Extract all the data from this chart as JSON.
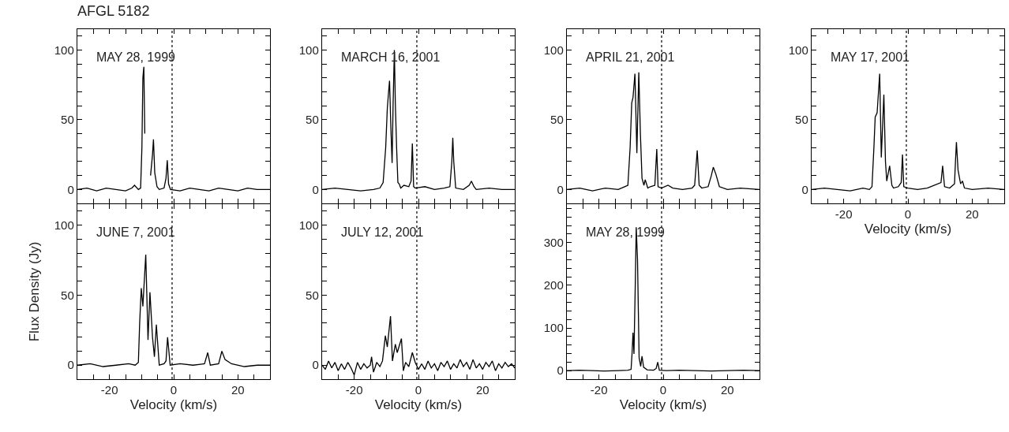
{
  "chart_data": [
    {
      "type": "line",
      "title": "AFGL 5182",
      "annotations": [
        "MAY 28, 1999"
      ],
      "tick_labels": "y",
      "xlim": [
        -30,
        30
      ],
      "ylim": [
        -10,
        115
      ],
      "xticks": [
        {
          "value": -30,
          "label": null
        },
        {
          "value": -25,
          "label": null
        },
        {
          "value": -20,
          "label": null
        },
        {
          "value": -15,
          "label": null
        },
        {
          "value": -10,
          "label": null
        },
        {
          "value": -5,
          "label": null
        },
        {
          "value": 0,
          "label": null
        },
        {
          "value": 5,
          "label": null
        },
        {
          "value": 10,
          "label": null
        },
        {
          "value": 15,
          "label": null
        },
        {
          "value": 20,
          "label": null
        },
        {
          "value": 25,
          "label": null
        },
        {
          "value": 30,
          "label": null
        }
      ],
      "yticks": [
        0,
        {
          "value": 10,
          "label": null
        },
        {
          "value": 20,
          "label": null
        },
        {
          "value": 30,
          "label": null
        },
        {
          "value": 40,
          "label": null
        },
        50,
        {
          "value": 60,
          "label": null
        },
        {
          "value": 70,
          "label": null
        },
        {
          "value": 80,
          "label": null
        },
        {
          "value": 90,
          "label": null
        },
        100,
        {
          "value": 110,
          "label": null
        }
      ],
      "ref_lines": [
        {
          "axis": "x",
          "value": -0.5,
          "line_style": "dotted"
        }
      ],
      "series": [
        {
          "color": "#000000",
          "x": [
            -30,
            -27,
            -24,
            -21,
            -18,
            -15,
            -13,
            -12.2,
            -11,
            -10.3,
            -9.9,
            -9.6,
            -9.3,
            -9.0,
            -8.7,
            -7.7,
            -7.2,
            -6.6,
            -6.3,
            -5.9,
            -5.2,
            -4.5,
            -3.0,
            -2.4,
            -2.0,
            -1.6,
            -1,
            2,
            5,
            8,
            11,
            14,
            17,
            20,
            23,
            26,
            30
          ],
          "values": [
            0,
            1,
            -1,
            1,
            0,
            -1,
            1,
            3,
            0,
            1,
            30,
            80,
            88,
            40,
            null,
            null,
            10,
            25,
            36,
            12,
            2,
            0,
            1,
            8,
            21,
            4,
            0,
            -1,
            1,
            0,
            -1,
            1,
            0,
            -1,
            1,
            0,
            0
          ]
        }
      ]
    },
    {
      "type": "line",
      "annotations": [
        "MARCH 16, 2001"
      ],
      "tick_labels": "y",
      "xlim": [
        -30,
        30
      ],
      "ylim": [
        -10,
        115
      ],
      "xticks": [
        {
          "value": -30,
          "label": null
        },
        {
          "value": -25,
          "label": null
        },
        {
          "value": -20,
          "label": null
        },
        {
          "value": -15,
          "label": null
        },
        {
          "value": -10,
          "label": null
        },
        {
          "value": -5,
          "label": null
        },
        {
          "value": 0,
          "label": null
        },
        {
          "value": 5,
          "label": null
        },
        {
          "value": 10,
          "label": null
        },
        {
          "value": 15,
          "label": null
        },
        {
          "value": 20,
          "label": null
        },
        {
          "value": 25,
          "label": null
        },
        {
          "value": 30,
          "label": null
        }
      ],
      "yticks": [
        0,
        {
          "value": 10,
          "label": null
        },
        {
          "value": 20,
          "label": null
        },
        {
          "value": 30,
          "label": null
        },
        {
          "value": 40,
          "label": null
        },
        50,
        {
          "value": 60,
          "label": null
        },
        {
          "value": 70,
          "label": null
        },
        {
          "value": 80,
          "label": null
        },
        {
          "value": 90,
          "label": null
        },
        100,
        {
          "value": 110,
          "label": null
        }
      ],
      "ref_lines": [
        {
          "axis": "x",
          "value": -0.5,
          "line_style": "dotted"
        }
      ],
      "series": [
        {
          "color": "#000000",
          "x": [
            -30,
            -26,
            -22,
            -18,
            -14,
            -12,
            -11,
            -10.2,
            -9.7,
            -9.3,
            -9.0,
            -8.6,
            -8.2,
            -7.9,
            -7.5,
            -7.2,
            -6.8,
            -6.4,
            -6.0,
            -5.5,
            -4.5,
            -3,
            -2.3,
            -1.9,
            -1.5,
            -1,
            2,
            5,
            8,
            9.8,
            10.4,
            10.7,
            11.0,
            11.6,
            14,
            15.8,
            16.5,
            17.3,
            18,
            22,
            26,
            30
          ],
          "values": [
            0,
            1,
            0,
            -1,
            0,
            1,
            5,
            30,
            58,
            70,
            78,
            45,
            19,
            60,
            100,
            62,
            30,
            5,
            4,
            1,
            3,
            2,
            6,
            33,
            2,
            1,
            2,
            0,
            1,
            2,
            20,
            37,
            20,
            1,
            0,
            3,
            6,
            2,
            0,
            1,
            0,
            0
          ]
        }
      ]
    },
    {
      "type": "line",
      "annotations": [
        "APRIL 21, 2001"
      ],
      "tick_labels": "y",
      "xlim": [
        -30,
        30
      ],
      "ylim": [
        -10,
        115
      ],
      "xticks": [
        {
          "value": -30,
          "label": null
        },
        {
          "value": -25,
          "label": null
        },
        {
          "value": -20,
          "label": null
        },
        {
          "value": -15,
          "label": null
        },
        {
          "value": -10,
          "label": null
        },
        {
          "value": -5,
          "label": null
        },
        {
          "value": 0,
          "label": null
        },
        {
          "value": 5,
          "label": null
        },
        {
          "value": 10,
          "label": null
        },
        {
          "value": 15,
          "label": null
        },
        {
          "value": 20,
          "label": null
        },
        {
          "value": 25,
          "label": null
        },
        {
          "value": 30,
          "label": null
        }
      ],
      "yticks": [
        0,
        {
          "value": 10,
          "label": null
        },
        {
          "value": 20,
          "label": null
        },
        {
          "value": 30,
          "label": null
        },
        {
          "value": 40,
          "label": null
        },
        50,
        {
          "value": 60,
          "label": null
        },
        {
          "value": 70,
          "label": null
        },
        {
          "value": 80,
          "label": null
        },
        {
          "value": 90,
          "label": null
        },
        100,
        {
          "value": 110,
          "label": null
        }
      ],
      "ref_lines": [
        {
          "axis": "x",
          "value": -0.5,
          "line_style": "dotted"
        }
      ],
      "series": [
        {
          "color": "#000000",
          "x": [
            -30,
            -26,
            -22,
            -18,
            -14,
            -12,
            -11,
            -10.3,
            -9.8,
            -9.4,
            -8.8,
            -8.2,
            -7.6,
            -7.1,
            -6.6,
            -6.0,
            -5.6,
            -4.8,
            -4,
            -2.6,
            -2.0,
            -1.6,
            -0.5,
            1.5,
            3,
            6,
            9,
            9.8,
            10.6,
            11.2,
            12,
            14,
            15,
            15.6,
            16.4,
            17.5,
            20,
            24,
            30
          ],
          "values": [
            0,
            1,
            -1,
            1,
            0,
            2,
            3,
            30,
            62,
            66,
            83,
            26,
            84,
            40,
            8,
            3,
            7,
            1,
            2,
            3,
            29,
            2,
            1,
            3,
            1,
            0,
            1,
            3,
            28,
            3,
            1,
            2,
            10,
            16,
            11,
            2,
            0,
            1,
            0
          ]
        }
      ]
    },
    {
      "type": "line",
      "annotations": [
        "MAY 17, 2001"
      ],
      "xlabel": "Velocity (km/s)",
      "xlim": [
        -30,
        30
      ],
      "ylim": [
        -10,
        115
      ],
      "xticks": [
        {
          "value": -30,
          "label": null
        },
        {
          "value": -25,
          "label": null
        },
        -20,
        {
          "value": -15,
          "label": null
        },
        {
          "value": -10,
          "label": null
        },
        {
          "value": -5,
          "label": null
        },
        0,
        {
          "value": 5,
          "label": null
        },
        {
          "value": 10,
          "label": null
        },
        {
          "value": 15,
          "label": null
        },
        20,
        {
          "value": 25,
          "label": null
        },
        {
          "value": 30,
          "label": null
        }
      ],
      "yticks": [
        0,
        {
          "value": 10,
          "label": null
        },
        {
          "value": 20,
          "label": null
        },
        {
          "value": 30,
          "label": null
        },
        {
          "value": 40,
          "label": null
        },
        50,
        {
          "value": 60,
          "label": null
        },
        {
          "value": 70,
          "label": null
        },
        {
          "value": 80,
          "label": null
        },
        {
          "value": 90,
          "label": null
        },
        100,
        {
          "value": 110,
          "label": null
        }
      ],
      "ref_lines": [
        {
          "axis": "x",
          "value": -0.5,
          "line_style": "dotted"
        }
      ],
      "series": [
        {
          "color": "#000000",
          "x": [
            -30,
            -26,
            -22,
            -18,
            -14,
            -12,
            -11.2,
            -10.6,
            -10.2,
            -9.6,
            -8.8,
            -8.3,
            -7.5,
            -7.0,
            -6.6,
            -5.7,
            -5.0,
            -4.5,
            -3,
            -2.1,
            -1.7,
            -1.3,
            0,
            3,
            6,
            10.3,
            10.8,
            11.4,
            13,
            14.5,
            14.8,
            15.1,
            15.6,
            16.4,
            17.0,
            17.6,
            20,
            25,
            30
          ],
          "values": [
            0,
            1,
            0,
            -1,
            1,
            0,
            2,
            30,
            52,
            55,
            83,
            23,
            68,
            20,
            6,
            17,
            3,
            1,
            2,
            5,
            25,
            2,
            1,
            0,
            1,
            5,
            17,
            2,
            1,
            4,
            20,
            34,
            14,
            4,
            6,
            1,
            0,
            1,
            0
          ]
        }
      ]
    },
    {
      "type": "line",
      "annotations": [
        "JUNE 7, 2001"
      ],
      "xlabel": "Velocity (km/s)",
      "ylabel": "Flux Density (Jy)",
      "xlim": [
        -30,
        30
      ],
      "ylim": [
        -10,
        115
      ],
      "xticks": [
        {
          "value": -30,
          "label": null
        },
        {
          "value": -25,
          "label": null
        },
        -20,
        {
          "value": -15,
          "label": null
        },
        {
          "value": -10,
          "label": null
        },
        {
          "value": -5,
          "label": null
        },
        0,
        {
          "value": 5,
          "label": null
        },
        {
          "value": 10,
          "label": null
        },
        {
          "value": 15,
          "label": null
        },
        20,
        {
          "value": 25,
          "label": null
        },
        {
          "value": 30,
          "label": null
        }
      ],
      "yticks": [
        0,
        {
          "value": 10,
          "label": null
        },
        {
          "value": 20,
          "label": null
        },
        {
          "value": 30,
          "label": null
        },
        {
          "value": 40,
          "label": null
        },
        50,
        {
          "value": 60,
          "label": null
        },
        {
          "value": 70,
          "label": null
        },
        {
          "value": 80,
          "label": null
        },
        {
          "value": 90,
          "label": null
        },
        100,
        {
          "value": 110,
          "label": null
        }
      ],
      "ref_lines": [
        {
          "axis": "x",
          "value": -0.5,
          "line_style": "dotted"
        }
      ],
      "series": [
        {
          "color": "#000000",
          "x": [
            -30,
            -26,
            -22,
            -18,
            -14,
            -12,
            -11.0,
            -10.6,
            -10.1,
            -9.6,
            -8.7,
            -8.0,
            -7.4,
            -6.6,
            -6.0,
            -5.4,
            -4.5,
            -3,
            -2.4,
            -1.9,
            -1.1,
            2,
            6,
            9.6,
            10.6,
            11.4,
            14,
            15.0,
            16,
            18,
            22,
            26,
            30
          ],
          "values": [
            0,
            1,
            -1,
            0,
            1,
            0,
            2,
            30,
            55,
            42,
            79,
            18,
            52,
            20,
            6,
            29,
            0,
            1,
            3,
            20,
            0,
            1,
            0,
            1,
            9,
            0,
            1,
            10,
            4,
            1,
            -1,
            0,
            0
          ]
        }
      ]
    },
    {
      "type": "line",
      "annotations": [
        "JULY 12, 2001"
      ],
      "xlabel": "Velocity (km/s)",
      "xlim": [
        -30,
        30
      ],
      "ylim": [
        -10,
        115
      ],
      "xticks": [
        {
          "value": -30,
          "label": null
        },
        {
          "value": -25,
          "label": null
        },
        -20,
        {
          "value": -15,
          "label": null
        },
        {
          "value": -10,
          "label": null
        },
        {
          "value": -5,
          "label": null
        },
        0,
        {
          "value": 5,
          "label": null
        },
        {
          "value": 10,
          "label": null
        },
        {
          "value": 15,
          "label": null
        },
        20,
        {
          "value": 25,
          "label": null
        },
        {
          "value": 30,
          "label": null
        }
      ],
      "yticks": [
        0,
        {
          "value": 10,
          "label": null
        },
        {
          "value": 20,
          "label": null
        },
        {
          "value": 30,
          "label": null
        },
        {
          "value": 40,
          "label": null
        },
        50,
        {
          "value": 60,
          "label": null
        },
        {
          "value": 70,
          "label": null
        },
        {
          "value": 80,
          "label": null
        },
        {
          "value": 90,
          "label": null
        },
        100,
        {
          "value": 110,
          "label": null
        }
      ],
      "ref_lines": [
        {
          "axis": "x",
          "value": -0.5,
          "line_style": "dotted"
        }
      ],
      "series": [
        {
          "color": "#000000",
          "x": [
            -30,
            -29,
            -28,
            -27,
            -26,
            -25,
            -24,
            -23,
            -22,
            -21,
            -20,
            -19,
            -18,
            -17,
            -16,
            -15,
            -14.6,
            -14,
            -13,
            -12,
            -11.2,
            -10.3,
            -9.7,
            -8.7,
            -8.1,
            -7.2,
            -6.6,
            -5.3,
            -4.7,
            -4,
            -3,
            -1.9,
            -1,
            0,
            1,
            2,
            3,
            4,
            5,
            6,
            7,
            8,
            9,
            10,
            11,
            12,
            13,
            14,
            15,
            16,
            17,
            18,
            19,
            20,
            21,
            22,
            23,
            24,
            25,
            26,
            27,
            28,
            29,
            30
          ],
          "values": [
            0,
            -3,
            3,
            -2,
            2,
            -4,
            1,
            -3,
            2,
            -2,
            -7,
            2,
            -3,
            1,
            -2,
            0,
            6,
            -5,
            2,
            -1,
            3,
            21,
            13,
            35,
            3,
            15,
            9,
            19,
            -4,
            2,
            -1,
            9,
            2,
            -3,
            1,
            -3,
            3,
            -2,
            1,
            -4,
            2,
            -1,
            3,
            -3,
            1,
            -2,
            4,
            -1,
            2,
            -3,
            4,
            -2,
            1,
            -3,
            2,
            -1,
            3,
            -4,
            1,
            -2,
            2,
            -1,
            1,
            -2
          ]
        }
      ]
    },
    {
      "type": "line",
      "annotations": [
        "MAY 28, 1999"
      ],
      "xlabel": "Velocity (km/s)",
      "xlim": [
        -30,
        30
      ],
      "ylim": [
        -20,
        390
      ],
      "xticks": [
        {
          "value": -30,
          "label": null
        },
        {
          "value": -25,
          "label": null
        },
        -20,
        {
          "value": -15,
          "label": null
        },
        {
          "value": -10,
          "label": null
        },
        {
          "value": -5,
          "label": null
        },
        0,
        {
          "value": 5,
          "label": null
        },
        {
          "value": 10,
          "label": null
        },
        {
          "value": 15,
          "label": null
        },
        20,
        {
          "value": 25,
          "label": null
        },
        {
          "value": 30,
          "label": null
        }
      ],
      "yticks": [
        0,
        {
          "value": 20,
          "label": null
        },
        {
          "value": 40,
          "label": null
        },
        {
          "value": 60,
          "label": null
        },
        {
          "value": 80,
          "label": null
        },
        100,
        {
          "value": 120,
          "label": null
        },
        {
          "value": 140,
          "label": null
        },
        {
          "value": 160,
          "label": null
        },
        {
          "value": 180,
          "label": null
        },
        200,
        {
          "value": 220,
          "label": null
        },
        {
          "value": 240,
          "label": null
        },
        {
          "value": 260,
          "label": null
        },
        {
          "value": 280,
          "label": null
        },
        300,
        {
          "value": 320,
          "label": null
        },
        {
          "value": 340,
          "label": null
        },
        {
          "value": 360,
          "label": null
        },
        {
          "value": 380,
          "label": null
        }
      ],
      "ref_lines": [
        {
          "axis": "x",
          "value": -0.5,
          "line_style": "dotted"
        }
      ],
      "series": [
        {
          "color": "#000000",
          "x": [
            -30,
            -26,
            -22,
            -18,
            -14,
            -11,
            -10,
            -9.7,
            -9.4,
            -9.1,
            -8.7,
            -8.4,
            -8.0,
            -7.5,
            -7.0,
            -6.6,
            -6.1,
            -5,
            -3,
            -2.2,
            -1.7,
            -1.2,
            1,
            5,
            10,
            15,
            20,
            25,
            30
          ],
          "values": [
            0,
            1,
            0,
            -1,
            0,
            1,
            3,
            40,
            89,
            39,
            200,
            336,
            260,
            30,
            10,
            34,
            8,
            2,
            1,
            5,
            20,
            1,
            0,
            1,
            0,
            -1,
            0,
            1,
            0
          ]
        }
      ]
    }
  ]
}
